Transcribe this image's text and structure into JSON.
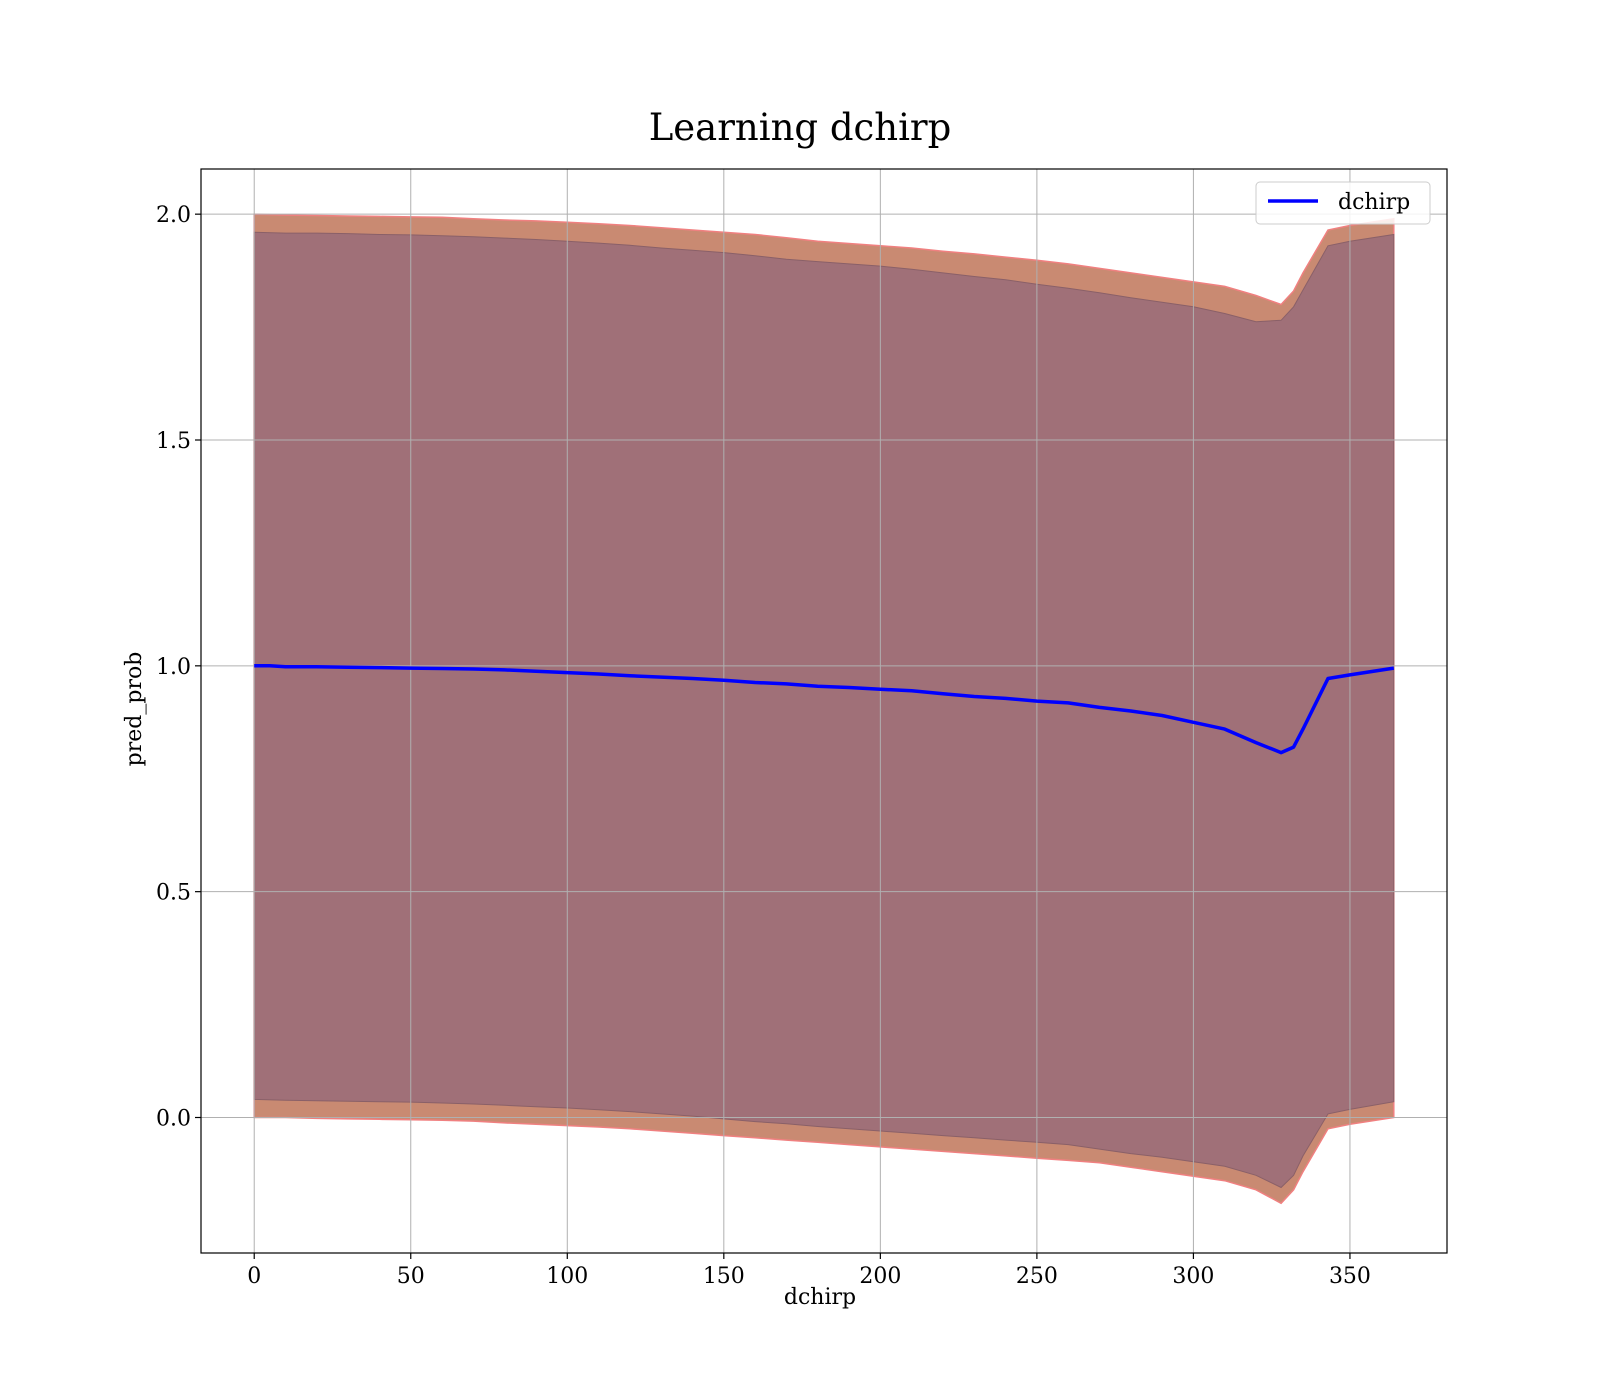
{
  "chart_data": {
    "type": "line",
    "title": "Learning dchirp",
    "xlabel": "dchirp",
    "ylabel": "pred_prob",
    "xlim": [
      -17,
      381
    ],
    "ylim": [
      -0.3,
      2.1
    ],
    "xticks": [
      0,
      50,
      100,
      150,
      200,
      250,
      300,
      350
    ],
    "yticks": [
      0.0,
      0.5,
      1.0,
      1.5,
      2.0
    ],
    "xtick_labels": [
      "0",
      "50",
      "100",
      "150",
      "200",
      "250",
      "300",
      "350"
    ],
    "ytick_labels": [
      "0.0",
      "0.5",
      "1.0",
      "1.5",
      "2.0"
    ],
    "grid": true,
    "legend": {
      "position": "top-right",
      "entries": [
        "dchirp"
      ]
    },
    "colors": {
      "line": "#0000ff",
      "outer_band": "#c98a72",
      "inner_band": "#a07078",
      "band_edge": "#f08080"
    },
    "series": [
      {
        "name": "dchirp",
        "x": [
          0,
          5,
          10,
          20,
          30,
          40,
          50,
          60,
          70,
          80,
          90,
          100,
          110,
          120,
          130,
          140,
          150,
          160,
          170,
          180,
          190,
          200,
          210,
          220,
          230,
          240,
          250,
          260,
          270,
          280,
          290,
          300,
          310,
          320,
          328,
          332,
          335,
          343,
          350,
          364
        ],
        "y": [
          1.0,
          1.0,
          0.998,
          0.998,
          0.997,
          0.996,
          0.995,
          0.994,
          0.993,
          0.991,
          0.988,
          0.985,
          0.982,
          0.978,
          0.975,
          0.972,
          0.968,
          0.963,
          0.96,
          0.955,
          0.952,
          0.948,
          0.945,
          0.938,
          0.932,
          0.928,
          0.922,
          0.918,
          0.908,
          0.9,
          0.89,
          0.875,
          0.86,
          0.83,
          0.808,
          0.82,
          0.86,
          0.972,
          0.98,
          0.995
        ]
      }
    ],
    "bands": [
      {
        "x": [
          0,
          10,
          20,
          30,
          40,
          50,
          60,
          70,
          80,
          90,
          100,
          110,
          120,
          130,
          140,
          150,
          160,
          170,
          180,
          190,
          200,
          210,
          220,
          230,
          240,
          250,
          260,
          270,
          280,
          290,
          300,
          310,
          320,
          328,
          332,
          335,
          343,
          350,
          364
        ],
        "upper": [
          2.0,
          1.998,
          1.997,
          1.996,
          1.995,
          1.994,
          1.993,
          1.99,
          1.987,
          1.985,
          1.982,
          1.979,
          1.975,
          1.97,
          1.965,
          1.96,
          1.955,
          1.948,
          1.94,
          1.935,
          1.93,
          1.925,
          1.918,
          1.912,
          1.905,
          1.898,
          1.89,
          1.88,
          1.87,
          1.86,
          1.85,
          1.84,
          1.82,
          1.8,
          1.83,
          1.87,
          1.965,
          1.975,
          1.99
        ],
        "lower": [
          0.0,
          0.0,
          -0.002,
          -0.003,
          -0.004,
          -0.005,
          -0.006,
          -0.008,
          -0.012,
          -0.015,
          -0.018,
          -0.021,
          -0.025,
          -0.03,
          -0.035,
          -0.04,
          -0.045,
          -0.05,
          -0.055,
          -0.06,
          -0.065,
          -0.07,
          -0.075,
          -0.08,
          -0.085,
          -0.09,
          -0.095,
          -0.1,
          -0.11,
          -0.12,
          -0.13,
          -0.14,
          -0.16,
          -0.19,
          -0.16,
          -0.12,
          -0.025,
          -0.015,
          0.0
        ]
      },
      {
        "x": [
          0,
          10,
          20,
          30,
          40,
          50,
          60,
          70,
          80,
          90,
          100,
          110,
          120,
          130,
          140,
          150,
          160,
          170,
          180,
          190,
          200,
          210,
          220,
          230,
          240,
          250,
          260,
          270,
          280,
          290,
          300,
          310,
          320,
          328,
          332,
          335,
          343,
          350,
          364
        ],
        "upper": [
          1.96,
          1.958,
          1.958,
          1.957,
          1.955,
          1.954,
          1.952,
          1.95,
          1.947,
          1.944,
          1.94,
          1.936,
          1.931,
          1.925,
          1.92,
          1.915,
          1.908,
          1.9,
          1.895,
          1.89,
          1.885,
          1.878,
          1.87,
          1.862,
          1.855,
          1.845,
          1.836,
          1.826,
          1.815,
          1.805,
          1.795,
          1.78,
          1.762,
          1.765,
          1.795,
          1.832,
          1.93,
          1.94,
          1.955
        ],
        "lower": [
          0.04,
          0.038,
          0.037,
          0.036,
          0.035,
          0.034,
          0.032,
          0.03,
          0.027,
          0.024,
          0.021,
          0.017,
          0.013,
          0.008,
          0.003,
          -0.003,
          -0.009,
          -0.014,
          -0.02,
          -0.025,
          -0.03,
          -0.035,
          -0.04,
          -0.045,
          -0.05,
          -0.055,
          -0.06,
          -0.07,
          -0.08,
          -0.088,
          -0.098,
          -0.108,
          -0.128,
          -0.155,
          -0.128,
          -0.085,
          0.008,
          0.018,
          0.035
        ]
      }
    ]
  }
}
